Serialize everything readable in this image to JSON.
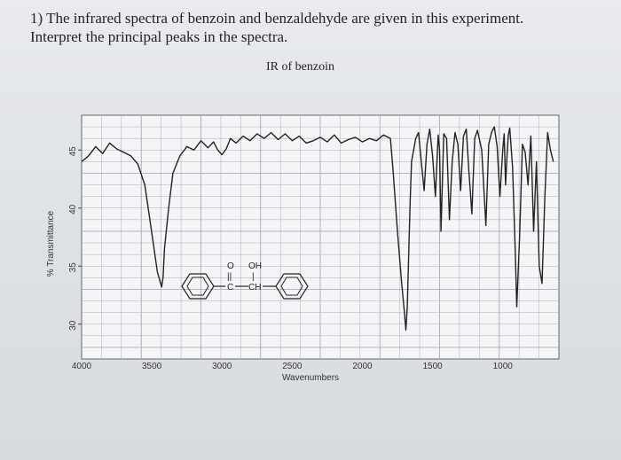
{
  "question": {
    "line1": "1) The infrared spectra of benzoin and benzaldehyde are given in this experiment.",
    "line2": "Interpret the principal peaks in the spectra."
  },
  "chart_data": {
    "type": "line",
    "title": "IR of benzoin",
    "xlabel": "Wavenumbers",
    "ylabel": "% Transmittance",
    "x_ticks": [
      4000,
      3500,
      3000,
      2500,
      2000,
      1500,
      1000
    ],
    "y_ticks": [
      45,
      40,
      35,
      30
    ],
    "xlim": [
      4000,
      600
    ],
    "ylim": [
      27,
      48
    ],
    "grid": true,
    "series": [
      {
        "x": [
          4000,
          3950,
          3900,
          3850,
          3800,
          3750,
          3700,
          3650,
          3600,
          3550,
          3520,
          3490,
          3460,
          3430,
          3420,
          3410,
          3380,
          3350,
          3300,
          3250,
          3200,
          3150,
          3100,
          3060,
          3030,
          3000,
          2970,
          2940,
          2900,
          2850,
          2800,
          2750,
          2700,
          2650,
          2600,
          2550,
          2500,
          2450,
          2400,
          2350,
          2300,
          2250,
          2200,
          2150,
          2100,
          2050,
          2000,
          1950,
          1900,
          1850,
          1800,
          1780,
          1750,
          1720,
          1700,
          1690,
          1680,
          1670,
          1660,
          1650,
          1620,
          1600,
          1580,
          1560,
          1540,
          1520,
          1500,
          1480,
          1460,
          1450,
          1440,
          1420,
          1400,
          1380,
          1360,
          1340,
          1320,
          1300,
          1280,
          1260,
          1240,
          1220,
          1200,
          1180,
          1150,
          1120,
          1100,
          1080,
          1060,
          1040,
          1020,
          1000,
          990,
          980,
          970,
          960,
          950,
          930,
          910,
          900,
          880,
          860,
          840,
          820,
          800,
          780,
          760,
          740,
          720,
          700,
          680,
          660,
          640
        ],
        "y": [
          44.0,
          44.5,
          45.3,
          44.7,
          45.6,
          45.1,
          44.8,
          44.5,
          43.8,
          42.0,
          39.5,
          37.0,
          34.5,
          33.2,
          34.0,
          36.5,
          40.0,
          43.0,
          44.5,
          45.3,
          45.0,
          45.8,
          45.2,
          45.7,
          45.0,
          44.6,
          45.1,
          46.0,
          45.6,
          46.2,
          45.8,
          46.4,
          46.0,
          46.5,
          45.9,
          46.4,
          45.8,
          46.2,
          45.6,
          45.8,
          46.1,
          45.7,
          46.3,
          45.6,
          45.9,
          46.1,
          45.7,
          46.0,
          45.8,
          46.3,
          46.0,
          43.0,
          38.0,
          33.5,
          31.0,
          29.5,
          31.5,
          36.0,
          40.5,
          44.0,
          46.0,
          46.5,
          44.0,
          41.5,
          45.5,
          46.8,
          44.5,
          41.0,
          46.3,
          45.0,
          38.0,
          46.4,
          46.0,
          39.0,
          44.0,
          46.5,
          45.5,
          41.5,
          46.2,
          46.8,
          43.0,
          39.5,
          46.0,
          46.7,
          45.0,
          38.5,
          45.5,
          46.5,
          47.0,
          45.3,
          41.0,
          45.0,
          46.4,
          42.0,
          44.5,
          46.3,
          46.9,
          43.5,
          36.0,
          31.5,
          37.5,
          45.5,
          44.8,
          42.0,
          46.2,
          38.0,
          44.0,
          35.0,
          33.5,
          41.0,
          46.5,
          45.0,
          44.0
        ]
      }
    ]
  },
  "structure": {
    "oxygen": "O",
    "hydroxyl": "OH",
    "carbonyl_carbon": "C",
    "methine": "CH",
    "double_bond": "||",
    "single_bond": "|"
  }
}
